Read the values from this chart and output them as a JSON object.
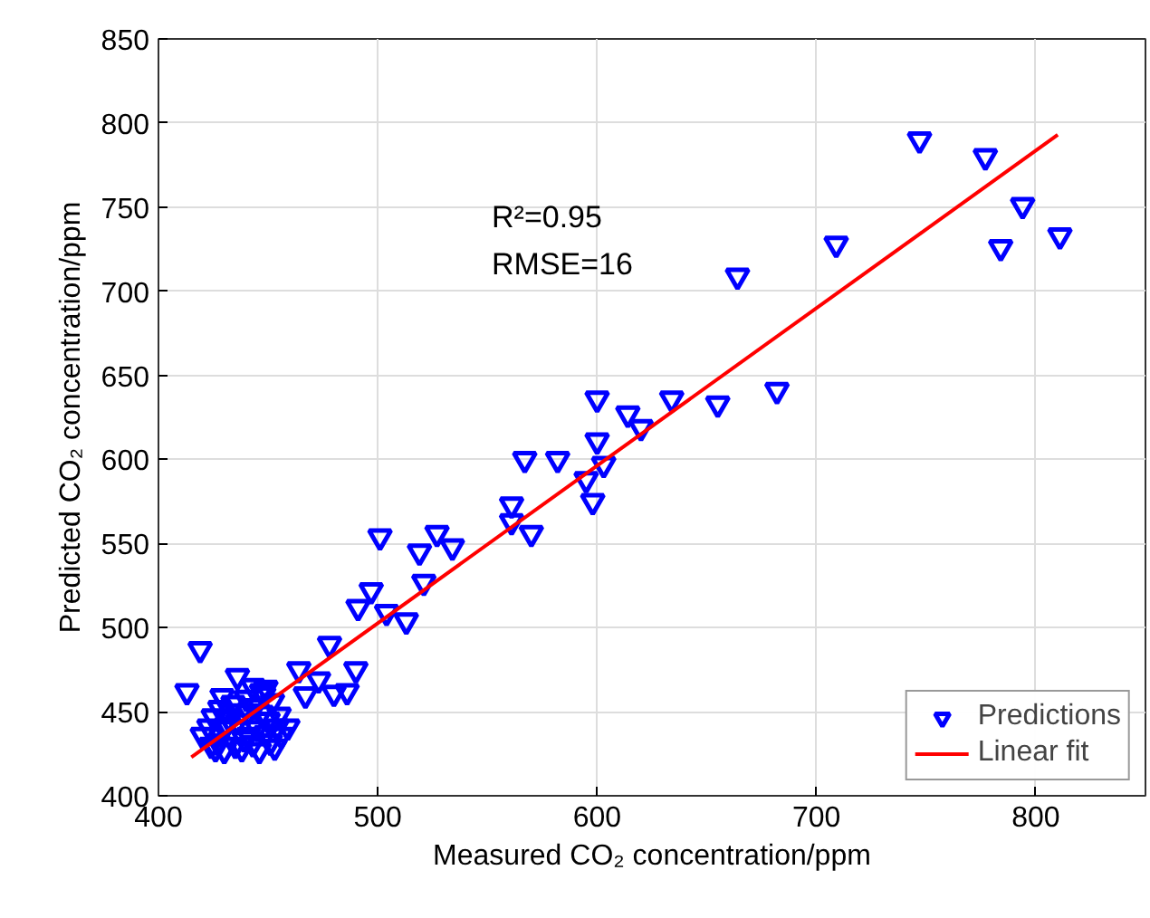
{
  "chart_data": {
    "type": "scatter",
    "xlabel": "Measured CO₂ concentration/ppm",
    "ylabel": "Predicted CO₂ concentration/ppm",
    "xlim": [
      400,
      850
    ],
    "ylim": [
      400,
      850
    ],
    "xticks": [
      400,
      500,
      600,
      700,
      800
    ],
    "yticks": [
      400,
      450,
      500,
      550,
      600,
      650,
      700,
      750,
      800,
      850
    ],
    "grid": true,
    "legend": "bottom right",
    "annotations": [
      "R²=0.95",
      "RMSE=16"
    ],
    "series": [
      {
        "name": "Predictions",
        "color": "#0000ff",
        "marker": "triangle",
        "x": [
          747,
          777,
          794,
          784,
          811,
          709,
          664,
          682,
          655,
          634,
          614,
          620,
          600,
          600,
          603,
          595,
          598,
          567,
          582,
          561,
          561,
          570,
          501,
          519,
          527,
          534,
          521,
          497,
          491,
          504,
          513,
          478,
          419,
          490,
          464,
          473,
          467,
          480,
          486,
          413,
          436,
          459,
          420,
          423,
          425,
          427,
          428,
          430,
          430,
          432,
          434,
          435,
          436,
          438,
          438,
          440,
          441,
          443,
          444,
          445,
          446,
          447,
          448,
          449,
          450,
          451,
          452,
          454,
          455,
          456,
          424,
          429,
          431,
          439,
          443,
          447,
          426,
          441,
          449,
          453
        ],
        "values": [
          790,
          780,
          751,
          726,
          733,
          728,
          709,
          641,
          633,
          636,
          627,
          619,
          636,
          611,
          597,
          588,
          575,
          600,
          600,
          573,
          563,
          556,
          554,
          545,
          556,
          548,
          527,
          522,
          512,
          509,
          504,
          490,
          487,
          475,
          475,
          469,
          460,
          461,
          462,
          462,
          471,
          441,
          436,
          441,
          447,
          432,
          452,
          427,
          440,
          446,
          455,
          430,
          444,
          450,
          428,
          458,
          436,
          431,
          453,
          440,
          427,
          449,
          460,
          437,
          445,
          432,
          456,
          441,
          448,
          436,
          430,
          459,
          442,
          434,
          465,
          462,
          428,
          450,
          464,
          429
        ]
      },
      {
        "name": "Linear fit",
        "type": "line",
        "color": "#ff0000",
        "line_style": "solid",
        "x": [
          415,
          810
        ],
        "values": [
          423,
          793
        ]
      }
    ]
  }
}
